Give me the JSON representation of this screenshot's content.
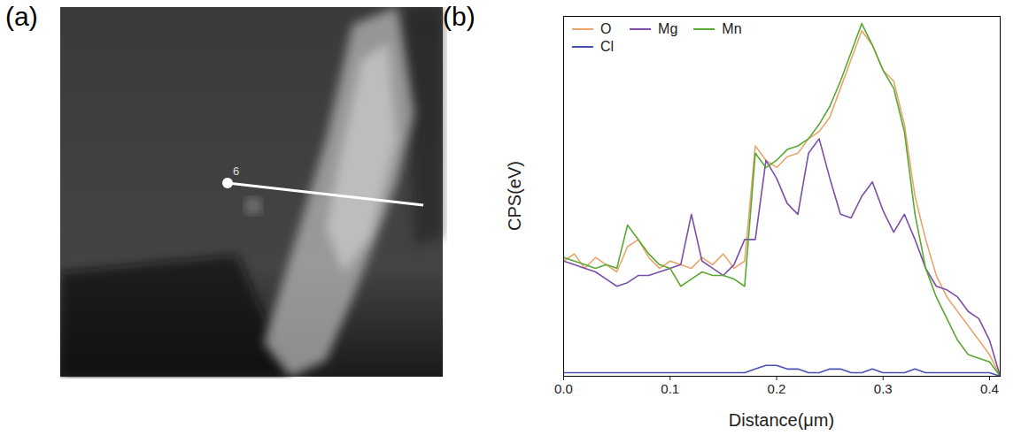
{
  "panel_labels": [
    "(a)",
    "(b)"
  ],
  "image_marker": "6",
  "chart_data": {
    "type": "line",
    "xlabel": "Distance(μm)",
    "ylabel": "CPS(eV)",
    "x": [
      0.0,
      0.01,
      0.02,
      0.03,
      0.04,
      0.05,
      0.06,
      0.07,
      0.08,
      0.09,
      0.1,
      0.11,
      0.12,
      0.13,
      0.14,
      0.15,
      0.16,
      0.17,
      0.18,
      0.19,
      0.2,
      0.21,
      0.22,
      0.23,
      0.24,
      0.25,
      0.26,
      0.27,
      0.28,
      0.29,
      0.3,
      0.31,
      0.32,
      0.33,
      0.34,
      0.35,
      0.36,
      0.37,
      0.38,
      0.39,
      0.4,
      0.41
    ],
    "series": [
      {
        "name": "O",
        "color": "#e8a66c",
        "values": [
          32,
          34,
          30,
          33,
          31,
          29,
          36,
          38,
          33,
          30,
          32,
          31,
          30,
          33,
          31,
          34,
          30,
          32,
          64,
          60,
          58,
          61,
          62,
          66,
          68,
          72,
          80,
          88,
          96,
          92,
          85,
          82,
          70,
          50,
          38,
          28,
          22,
          18,
          14,
          10,
          6,
          0
        ]
      },
      {
        "name": "Mg",
        "color": "#7b4fa6",
        "values": [
          32,
          31,
          30,
          29,
          27,
          25,
          26,
          28,
          28,
          29,
          30,
          31,
          45,
          32,
          30,
          28,
          31,
          38,
          38,
          60,
          55,
          48,
          45,
          62,
          66,
          55,
          45,
          44,
          50,
          54,
          46,
          40,
          45,
          38,
          30,
          25,
          24,
          22,
          18,
          16,
          10,
          0
        ]
      },
      {
        "name": "Mn",
        "color": "#5aa832",
        "values": [
          33,
          32,
          31,
          30,
          31,
          30,
          42,
          38,
          34,
          31,
          30,
          25,
          27,
          29,
          28,
          28,
          27,
          25,
          62,
          58,
          60,
          63,
          64,
          66,
          70,
          75,
          82,
          90,
          98,
          92,
          85,
          80,
          68,
          45,
          30,
          22,
          16,
          10,
          6,
          5,
          4,
          0
        ]
      },
      {
        "name": "Cl",
        "color": "#4a50b2",
        "values": [
          1,
          1,
          1,
          1,
          1,
          1,
          1,
          1,
          1,
          1,
          1,
          1,
          1,
          1,
          1,
          1,
          1,
          1,
          2,
          3,
          3,
          2,
          2,
          1,
          1,
          2,
          2,
          1,
          1,
          2,
          1,
          1,
          1,
          2,
          1,
          1,
          1,
          1,
          1,
          1,
          1,
          0
        ]
      }
    ],
    "xlim": [
      0,
      0.41
    ],
    "xticks": [
      {
        "value": 0,
        "label": "0.0"
      },
      0.1,
      0.2,
      0.3,
      0.4
    ],
    "ylim": [
      0,
      100
    ],
    "tick_labels": "x",
    "legend": "upper left",
    "grid": false
  }
}
